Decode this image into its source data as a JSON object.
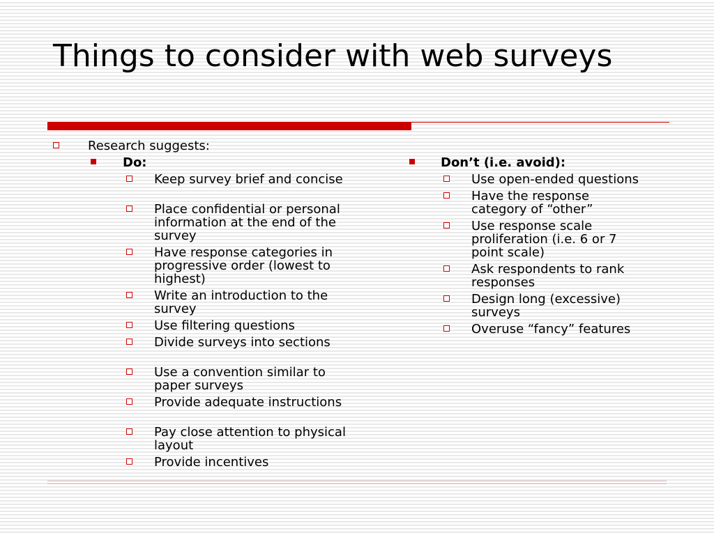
{
  "slide": {
    "title": "Things to consider with web surveys",
    "intro": "Research suggests:",
    "do": {
      "heading": "Do:",
      "items": [
        "Keep survey brief and concise",
        "Place confidential or personal information at the end of the survey",
        "Have response categories in progressive order (lowest to highest)",
        "Write an introduction to the survey",
        "Use filtering questions",
        "Divide surveys into sections",
        "Use a convention similar to paper surveys",
        "Provide adequate instructions",
        "Pay close attention to physical layout",
        "Provide incentives"
      ]
    },
    "dont": {
      "heading": "Don’t (i.e. avoid):",
      "items": [
        "Use open-ended questions",
        "Have the response category of “other”",
        "Use response scale proliferation (i.e. 6 or 7 point scale)",
        "Ask respondents to rank responses",
        "Design long (excessive) surveys",
        "Overuse “fancy” features"
      ]
    },
    "colors": {
      "accent": "#cc0000",
      "stripe": "#e9e9e9",
      "text": "#000000"
    }
  }
}
